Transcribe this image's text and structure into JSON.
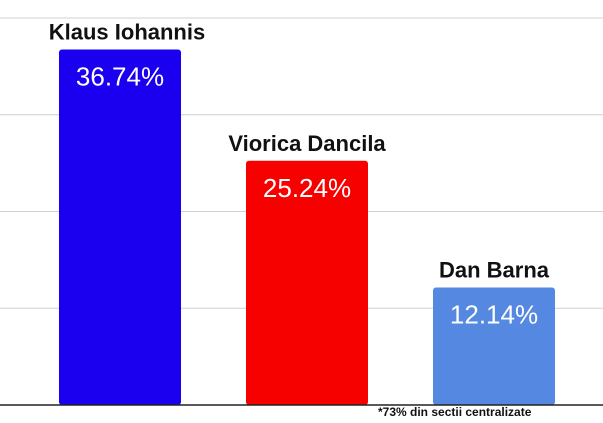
{
  "chart_data": {
    "type": "bar",
    "categories": [
      "Klaus Iohannis",
      "Viorica Dancila",
      "Dan Barna"
    ],
    "values": [
      36.74,
      25.24,
      12.14
    ],
    "value_labels": [
      "36.74%",
      "25.24%",
      "12.14%"
    ],
    "colors": [
      "#1a00ee",
      "#f60000",
      "#5588e0"
    ],
    "ylim": [
      0,
      40
    ],
    "grid": true,
    "title": "",
    "xlabel": "",
    "ylabel": ""
  },
  "footnote": "*73% din sectii centralizate"
}
